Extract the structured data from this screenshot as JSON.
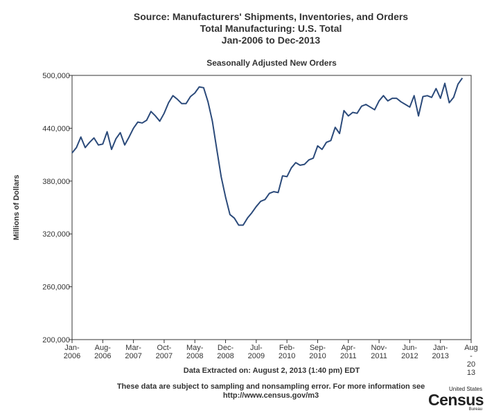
{
  "header": {
    "line1": "Source: Manufacturers' Shipments, Inventories, and Orders",
    "line2": "Total Manufacturing: U.S. Total",
    "line3": "Jan-2006 to Dec-2013"
  },
  "footer": {
    "extracted": "Data Extracted on: August 2, 2013 (1:40 pm) EDT",
    "disclaimer_line1": "These data are subject to sampling and nonsampling error. For more information see",
    "disclaimer_line2": "http://www.census.gov/m3"
  },
  "logo": {
    "top": "United States",
    "main": "Census",
    "bottom": "Bureau"
  },
  "colors": {
    "line": "#2b4a7a",
    "axis": "#333333",
    "text": "#333333"
  },
  "chart_data": {
    "type": "line",
    "title": "Seasonally Adjusted New Orders",
    "ylabel": "Millions of Dollars",
    "xlabel": "",
    "ylim": [
      200000,
      500000
    ],
    "yticks": [
      200000,
      260000,
      320000,
      380000,
      440000,
      500000
    ],
    "ytick_labels": [
      "200,000",
      "260,000",
      "320,000",
      "380,000",
      "440,000",
      "500,000"
    ],
    "xticks": [
      {
        "month": 0,
        "lines": [
          "Jan-",
          "2006"
        ]
      },
      {
        "month": 7,
        "lines": [
          "Aug-",
          "2006"
        ]
      },
      {
        "month": 14,
        "lines": [
          "Mar-",
          "2007"
        ]
      },
      {
        "month": 21,
        "lines": [
          "Oct-",
          "2007"
        ]
      },
      {
        "month": 28,
        "lines": [
          "May-",
          "2008"
        ]
      },
      {
        "month": 35,
        "lines": [
          "Dec-",
          "2008"
        ]
      },
      {
        "month": 42,
        "lines": [
          "Jul-",
          "2009"
        ]
      },
      {
        "month": 49,
        "lines": [
          "Feb-",
          "2010"
        ]
      },
      {
        "month": 56,
        "lines": [
          "Sep-",
          "2010"
        ]
      },
      {
        "month": 63,
        "lines": [
          "Apr-",
          "2011"
        ]
      },
      {
        "month": 70,
        "lines": [
          "Nov-",
          "2011"
        ]
      },
      {
        "month": 77,
        "lines": [
          "Jun-",
          "2012"
        ]
      },
      {
        "month": 84,
        "lines": [
          "Jan-",
          "2013"
        ]
      },
      {
        "month": 91,
        "lines": [
          "Aug",
          "-",
          "20",
          "13"
        ]
      }
    ],
    "grid": false,
    "x_months": 92,
    "series": [
      {
        "start": "Jan-2006",
        "values": [
          412000,
          418000,
          430000,
          418000,
          424000,
          429000,
          421000,
          422000,
          436000,
          416000,
          428000,
          435000,
          421000,
          430000,
          440000,
          447000,
          446000,
          449000,
          459000,
          454000,
          448000,
          457000,
          469000,
          477000,
          473000,
          468000,
          468000,
          476000,
          480000,
          487000,
          486000,
          470000,
          448000,
          416000,
          385000,
          362000,
          342000,
          338000,
          330000,
          330000,
          338000,
          344000,
          351000,
          357000,
          359000,
          366000,
          368000,
          367000,
          386000,
          385000,
          395000,
          401000,
          398000,
          399000,
          404000,
          406000,
          420000,
          416000,
          424000,
          426000,
          441000,
          434000,
          460000,
          454000,
          458000,
          457000,
          465000,
          467000,
          464000,
          461000,
          471000,
          477000,
          471000,
          474000,
          474000,
          470000,
          467000,
          464000,
          477000,
          454000,
          476000,
          477000,
          475000,
          485000,
          474000,
          491000,
          469000,
          475000,
          490000,
          497000
        ]
      }
    ]
  }
}
